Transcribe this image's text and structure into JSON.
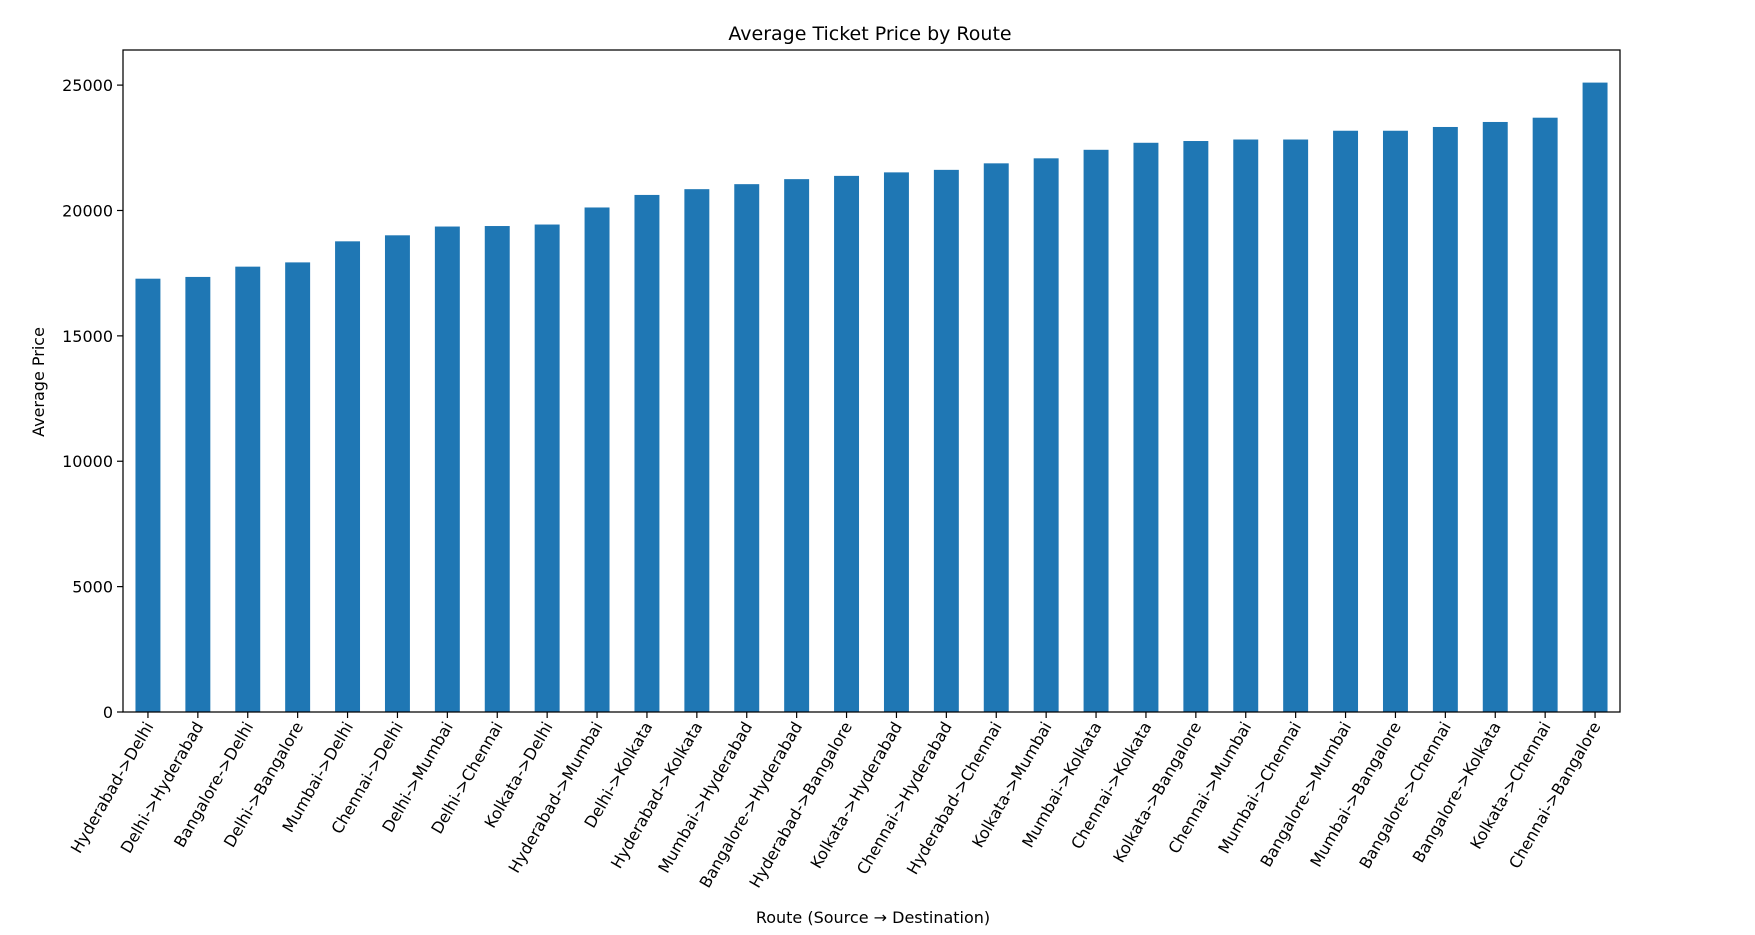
{
  "chart_data": {
    "type": "bar",
    "title": "Average Ticket Price by Route",
    "xlabel": "Route (Source → Destination)",
    "ylabel": "Average Price",
    "ylim": [
      0,
      26400
    ],
    "yticks": [
      0,
      5000,
      10000,
      15000,
      20000,
      25000
    ],
    "grid": false,
    "legend": "none",
    "colors": {
      "bar": "#1f77b4",
      "axis": "#000000",
      "background": "#ffffff"
    },
    "categories": [
      "Hyderabad->Delhi",
      "Delhi->Hyderabad",
      "Bangalore->Delhi",
      "Delhi->Bangalore",
      "Mumbai->Delhi",
      "Chennai->Delhi",
      "Delhi->Mumbai",
      "Delhi->Chennai",
      "Kolkata->Delhi",
      "Hyderabad->Mumbai",
      "Delhi->Kolkata",
      "Hyderabad->Kolkata",
      "Mumbai->Hyderabad",
      "Bangalore->Hyderabad",
      "Hyderabad->Bangalore",
      "Kolkata->Hyderabad",
      "Chennai->Hyderabad",
      "Hyderabad->Chennai",
      "Kolkata->Mumbai",
      "Mumbai->Kolkata",
      "Chennai->Kolkata",
      "Kolkata->Bangalore",
      "Chennai->Mumbai",
      "Mumbai->Chennai",
      "Bangalore->Mumbai",
      "Mumbai->Bangalore",
      "Bangalore->Chennai",
      "Bangalore->Kolkata",
      "Kolkata->Chennai",
      "Chennai->Bangalore"
    ],
    "values": [
      17280,
      17350,
      17760,
      17930,
      18770,
      19010,
      19360,
      19380,
      19440,
      20120,
      20620,
      20850,
      21050,
      21250,
      21380,
      21520,
      21620,
      21880,
      22080,
      22420,
      22700,
      22770,
      22830,
      22830,
      23180,
      23180,
      23330,
      23530,
      23700,
      25100
    ]
  }
}
